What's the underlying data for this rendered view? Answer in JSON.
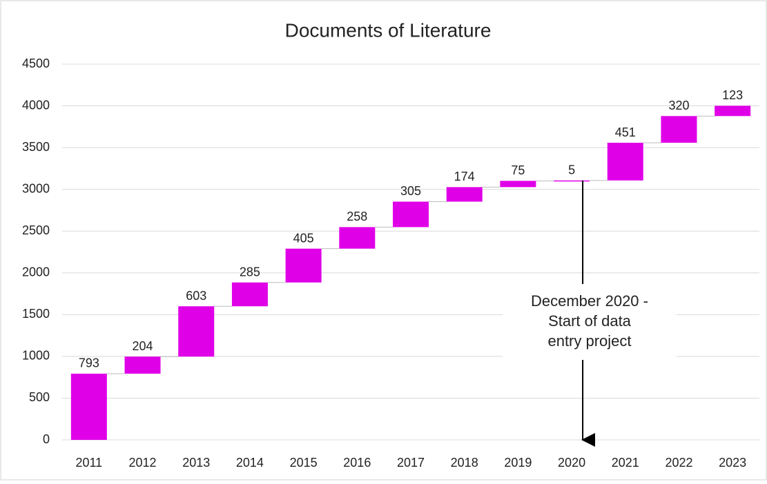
{
  "chart_data": {
    "type": "waterfall",
    "title": "Documents of Literature",
    "categories": [
      "2011",
      "2012",
      "2013",
      "2014",
      "2015",
      "2016",
      "2017",
      "2018",
      "2019",
      "2020",
      "2021",
      "2022",
      "2023"
    ],
    "values": [
      793,
      204,
      603,
      285,
      405,
      258,
      305,
      174,
      75,
      5,
      451,
      320,
      123
    ],
    "color": "#e000e8",
    "ylim": [
      0,
      4500
    ],
    "yticks": [
      0,
      500,
      1000,
      1500,
      2000,
      2500,
      3000,
      3500,
      4000,
      4500
    ],
    "grid": true,
    "annotation": {
      "category": "2020",
      "lines": [
        "December 2020 -",
        "Start of data",
        "entry project"
      ]
    }
  }
}
